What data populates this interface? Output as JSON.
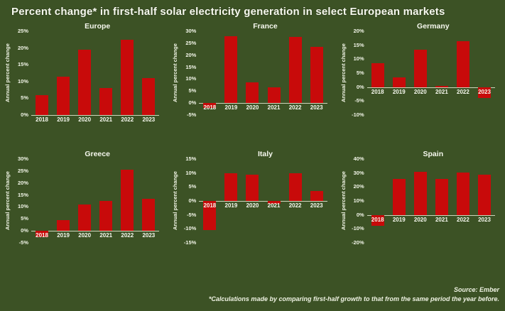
{
  "page": {
    "title": "Percent change* in first-half solar electricity generation in select European markets",
    "source": "Source: Ember",
    "footnote": "*Calculations made by comparing first-half growth to that from the same period the year before."
  },
  "colors": {
    "background": "#3c5225",
    "bar": "#c80a0a",
    "text": "#f2f5e8",
    "axis_line": "#cdd6bb"
  },
  "chart_data": [
    {
      "type": "bar",
      "title": "Europe",
      "ylabel": "Annual percent change",
      "categories": [
        "2018",
        "2019",
        "2020",
        "2021",
        "2022",
        "2023"
      ],
      "values": [
        6,
        11.5,
        19.5,
        8,
        22.5,
        11
      ],
      "ylim": [
        0,
        25
      ],
      "yticks": [
        {
          "label": "25%",
          "value": 25
        },
        {
          "label": "20%",
          "value": 20
        },
        {
          "label": "15%",
          "value": 15
        },
        {
          "label": "10%",
          "value": 10
        },
        {
          "label": "5%",
          "value": 5
        },
        {
          "label": "0%",
          "value": 0
        }
      ]
    },
    {
      "type": "bar",
      "title": "France",
      "ylabel": "Annual percent change",
      "categories": [
        "2018",
        "2019",
        "2020",
        "2021",
        "2022",
        "2023"
      ],
      "values": [
        -2,
        28,
        8.5,
        6.5,
        27.5,
        23.5
      ],
      "ylim": [
        -5,
        30
      ],
      "yticks": [
        {
          "label": "30%",
          "value": 30
        },
        {
          "label": "25%",
          "value": 25
        },
        {
          "label": "20%",
          "value": 20
        },
        {
          "label": "15%",
          "value": 15
        },
        {
          "label": "10%",
          "value": 10
        },
        {
          "label": "5%",
          "value": 5
        },
        {
          "label": "0%",
          "value": 0
        },
        {
          "label": "-5%",
          "value": -5
        }
      ]
    },
    {
      "type": "bar",
      "title": "Germany",
      "ylabel": "Annual percent change",
      "categories": [
        "2018",
        "2019",
        "2020",
        "2021",
        "2022",
        "2023"
      ],
      "values": [
        8.5,
        3.5,
        13.5,
        0.5,
        16.5,
        -4
      ],
      "ylim": [
        -10,
        20
      ],
      "yticks": [
        {
          "label": "20%",
          "value": 20
        },
        {
          "label": "15%",
          "value": 15
        },
        {
          "label": "10%",
          "value": 10
        },
        {
          "label": "5%",
          "value": 5
        },
        {
          "label": "0%",
          "value": 0
        },
        {
          "label": "-5%",
          "value": -5
        },
        {
          "label": "-10%",
          "value": -10
        }
      ]
    },
    {
      "type": "bar",
      "title": "Greece",
      "ylabel": "Annual percent change",
      "categories": [
        "2018",
        "2019",
        "2020",
        "2021",
        "2022",
        "2023"
      ],
      "values": [
        -2.5,
        4.5,
        11,
        12.5,
        25.5,
        13.5
      ],
      "ylim": [
        -5,
        30
      ],
      "yticks": [
        {
          "label": "30%",
          "value": 30
        },
        {
          "label": "25%",
          "value": 25
        },
        {
          "label": "20%",
          "value": 20
        },
        {
          "label": "15%",
          "value": 15
        },
        {
          "label": "10%",
          "value": 10
        },
        {
          "label": "5%",
          "value": 5
        },
        {
          "label": "0%",
          "value": 0
        },
        {
          "label": "-5%",
          "value": -5
        }
      ]
    },
    {
      "type": "bar",
      "title": "Italy",
      "ylabel": "Annual percent change",
      "categories": [
        "2018",
        "2019",
        "2020",
        "2021",
        "2022",
        "2023"
      ],
      "values": [
        -10.5,
        10,
        9.5,
        -1,
        10,
        3.5
      ],
      "ylim": [
        -15,
        15
      ],
      "yticks": [
        {
          "label": "15%",
          "value": 15
        },
        {
          "label": "10%",
          "value": 10
        },
        {
          "label": "5%",
          "value": 5
        },
        {
          "label": "0%",
          "value": 0
        },
        {
          "label": "-5%",
          "value": -5
        },
        {
          "label": "-10%",
          "value": -10
        },
        {
          "label": "-15%",
          "value": -15
        }
      ]
    },
    {
      "type": "bar",
      "title": "Spain",
      "ylabel": "Annual percent change",
      "categories": [
        "2018",
        "2019",
        "2020",
        "2021",
        "2022",
        "2023"
      ],
      "values": [
        -8,
        26,
        31,
        26,
        30.5,
        29
      ],
      "ylim": [
        -20,
        40
      ],
      "yticks": [
        {
          "label": "40%",
          "value": 40
        },
        {
          "label": "30%",
          "value": 30
        },
        {
          "label": "20%",
          "value": 20
        },
        {
          "label": "10%",
          "value": 10
        },
        {
          "label": "0%",
          "value": 0
        },
        {
          "label": "-10%",
          "value": -10
        },
        {
          "label": "-20%",
          "value": -20
        }
      ]
    }
  ]
}
